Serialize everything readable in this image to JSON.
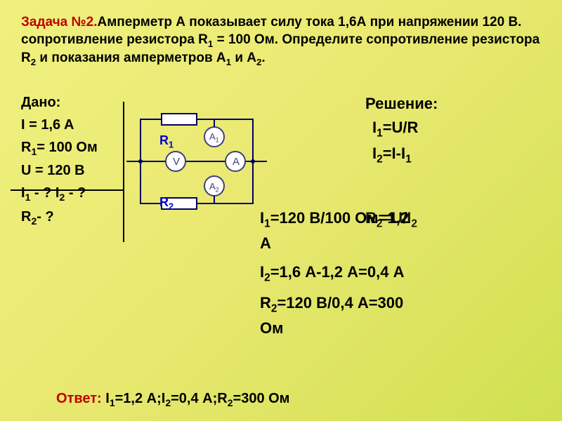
{
  "problem": {
    "title": "Задача №2.",
    "line1": "Амперметр А показывает силу тока 1,6А при напряжении 120 В. сопротивление резистора R",
    "line1_sub": "1",
    "line1_end": " = 100 Ом.",
    "line2": "Определите сопротивление резистора R",
    "line2_sub": "2",
    "line2_mid": " и показания амперметров А",
    "line2_sub2": "1",
    "line2_mid2": " и А",
    "line2_sub3": "2",
    "line2_end": ".",
    "title_color": "#c00000",
    "text_color": "#000000"
  },
  "given": {
    "label": "Дано:",
    "lines": [
      {
        "text": "I = 1,6 A"
      },
      {
        "html": "R<sub>1</sub>= 100 Ом"
      },
      {
        "text": "U = 120 В"
      },
      {
        "html": "I<sub>1</sub> - ? I<sub>2</sub> - ?"
      },
      {
        "html": "R<sub>2</sub>- ?"
      }
    ]
  },
  "solution": {
    "label": "Решение:",
    "formulas": [
      {
        "html": "I<sub>1</sub>=U/R"
      },
      {
        "html": "I<sub>2</sub>=I-I<sub>1</sub>"
      }
    ]
  },
  "calculations": [
    {
      "html": "I<sub>1</sub>=120 В/100 Ом=1,2",
      "overlap": "R<sub>2</sub>=U/I<sub>2</sub>"
    },
    {
      "html": "А"
    },
    {
      "html": "I<sub>2</sub>=1,6 А-1,2 А=0,4 А"
    },
    {
      "html": "R<sub>2</sub>=120 В/0,4 А=300"
    },
    {
      "html": "Ом"
    }
  ],
  "answer": {
    "label": "Ответ:",
    "text": "I<sub>1</sub>=1,2 А;I<sub>2</sub>=0,4 А;R<sub>2</sub>=300 Ом"
  },
  "circuit": {
    "labels": {
      "R1": "R",
      "R1_sub": "1",
      "R2": "R",
      "R2_sub": "2",
      "A1": "A",
      "A1_sub": "1",
      "A2": "A",
      "A2_sub": "2",
      "A": "A",
      "V": "V"
    },
    "colors": {
      "wire": "#000060",
      "label": "#0000d0",
      "meter_fill": "#ffffff",
      "meter_stroke": "#404080"
    }
  }
}
